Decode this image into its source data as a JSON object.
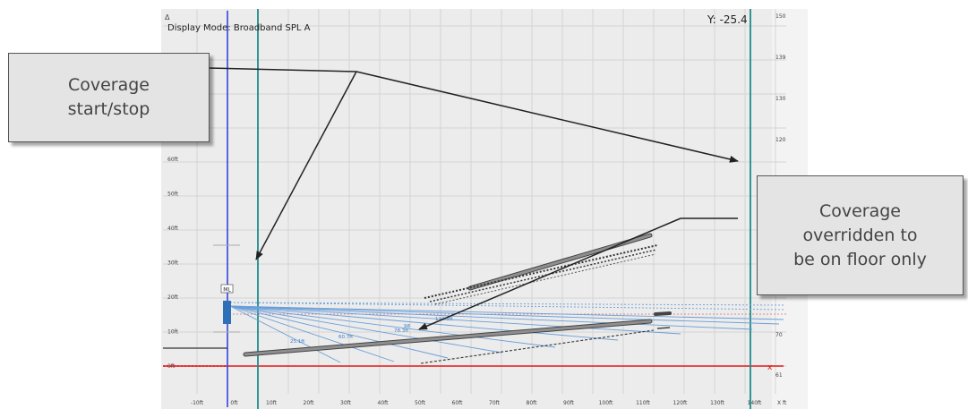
{
  "display_mode": "Display Mode: Broadband SPL A",
  "y_readout": "Y: -25.4",
  "callouts": {
    "coverage_start_stop": "Coverage\nstart/stop",
    "coverage_overridden": "Coverage\noverridden to\nbe on floor only"
  },
  "axes": {
    "x_ticks": [
      "-10ft",
      "0ft",
      "10ft",
      "20ft",
      "30ft",
      "40ft",
      "50ft",
      "60ft",
      "70ft",
      "80ft",
      "90ft",
      "100ft",
      "110ft",
      "120ft",
      "130ft",
      "140ft"
    ],
    "y_ticks": [
      "0ft",
      "10ft",
      "20ft",
      "30ft",
      "40ft",
      "50ft",
      "60ft"
    ],
    "right_scale": [
      "150",
      "139",
      "130",
      "120",
      "70",
      "61"
    ],
    "x_axis_label": "X ft"
  },
  "ray_labels": [
    "25.1ft",
    "60.7ft",
    "78.3ft",
    "98",
    "110.3ft"
  ],
  "speaker_label": "ML",
  "colors": {
    "plot_bg": "#ececec",
    "grid": "#d4d4d4",
    "origin_axis": "#3344dd",
    "coverage_line": "#1e8a8a",
    "floor_line": "#e01818",
    "rays": "#6a9ed8",
    "audience_surface": "#777777"
  }
}
